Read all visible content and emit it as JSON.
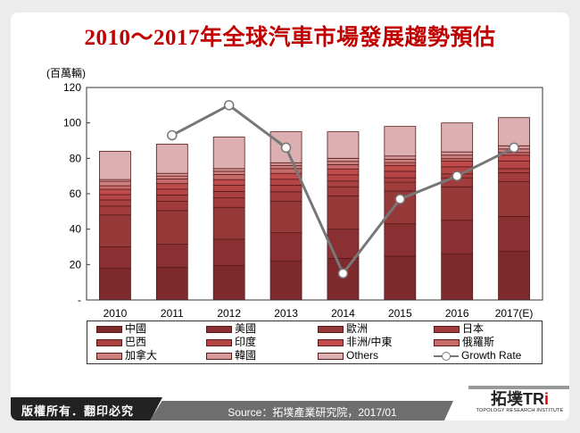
{
  "title": "2010～2017年全球汽車市場發展趨勢預估",
  "footer": {
    "copyright": "版權所有．翻印必究",
    "source": "Source：拓墣產業研究院，2017/01",
    "logo_text": "拓墣TRi",
    "logo_sub": "TOPOLOGY RESEARCH INSTITUTE"
  },
  "chart_data": {
    "type": "bar",
    "stacked": true,
    "title": "2010～2017年全球汽車市場發展趨勢預估",
    "ylabel": "(百萬輛)",
    "ylim": [
      0,
      120
    ],
    "yticks": [
      "-",
      "20",
      "40",
      "60",
      "80",
      "100",
      "120"
    ],
    "categories": [
      "2010",
      "2011",
      "2012",
      "2013",
      "2014",
      "2015",
      "2016",
      "2017(E)"
    ],
    "series": [
      {
        "name": "中國",
        "color": "#7e2a2d",
        "values": [
          18,
          18.5,
          19.5,
          22,
          23.5,
          24.7,
          26,
          27.4
        ]
      },
      {
        "name": "美國",
        "color": "#8a3033",
        "values": [
          12,
          13,
          14.8,
          16,
          16.5,
          18.3,
          19,
          19.8
        ]
      },
      {
        "name": "歐洲",
        "color": "#963939",
        "values": [
          18,
          19,
          18,
          17.8,
          18.8,
          18.5,
          18.9,
          19.7
        ]
      },
      {
        "name": "日本",
        "color": "#a13c3d",
        "values": [
          5,
          5.2,
          5.4,
          5.3,
          5.1,
          5.0,
          5.1,
          5.0
        ]
      },
      {
        "name": "巴西",
        "color": "#ab4041",
        "values": [
          3.5,
          3.6,
          3.6,
          3.7,
          3.3,
          2.5,
          2.2,
          2.3
        ]
      },
      {
        "name": "印度",
        "color": "#b64545",
        "values": [
          3,
          3.3,
          3.5,
          3.4,
          3.5,
          3.7,
          4.0,
          4.3
        ]
      },
      {
        "name": "非洲/中東",
        "color": "#c04b4b",
        "values": [
          3,
          3.1,
          3.2,
          3.3,
          3.3,
          3.3,
          3.2,
          3.3
        ]
      },
      {
        "name": "俄羅斯",
        "color": "#c66a6a",
        "values": [
          2,
          2.6,
          2.9,
          2.7,
          2.4,
          1.6,
          1.4,
          1.5
        ]
      },
      {
        "name": "加拿大",
        "color": "#cd8080",
        "values": [
          2.5,
          1.7,
          1.8,
          1.8,
          1.9,
          1.9,
          2.0,
          2.0
        ]
      },
      {
        "name": "韓國",
        "color": "#d69999",
        "values": [
          1,
          1.5,
          1.5,
          1.5,
          1.7,
          1.8,
          1.8,
          1.8
        ]
      },
      {
        "name": "Others",
        "color": "#dcb0b0",
        "values": [
          16,
          16.5,
          17.8,
          17.5,
          15,
          16.7,
          16.4,
          15.9
        ]
      }
    ],
    "line_series": {
      "name": "Growth Rate",
      "color": "#777777",
      "values_on_primary_axis": [
        null,
        93,
        110,
        86,
        15,
        57,
        70,
        86
      ]
    },
    "grid": false,
    "legend": "bottom"
  }
}
